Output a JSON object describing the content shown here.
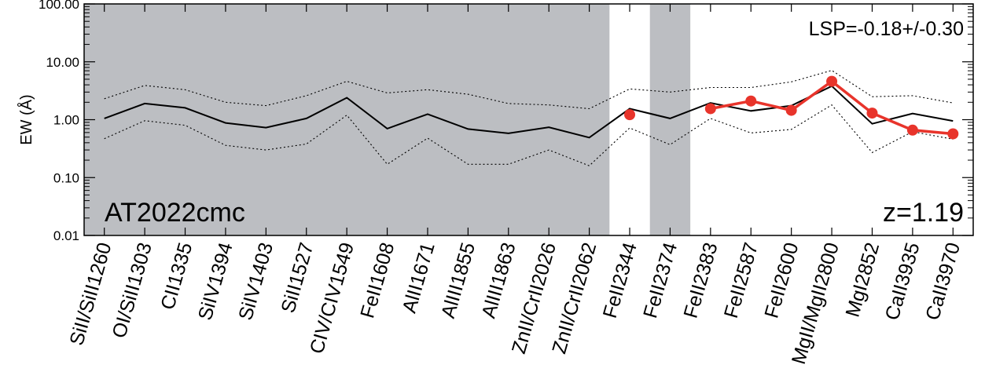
{
  "chart_data": {
    "type": "line",
    "ylabel": "EW (Å)",
    "yscale": "log",
    "ylim": [
      0.01,
      100
    ],
    "yticks": [
      {
        "value": 0.01,
        "label": "0.01"
      },
      {
        "value": 0.1,
        "label": "0.10"
      },
      {
        "value": 1,
        "label": "1.00"
      },
      {
        "value": 10,
        "label": "10.00"
      },
      {
        "value": 100,
        "label": "100.00"
      }
    ],
    "categories": [
      "SiII/SiII1260",
      "OI/SiII1303",
      "CII1335",
      "SiIV1394",
      "SiIV1403",
      "SiII1527",
      "CIV/CIV1549",
      "FeII1608",
      "AlII1671",
      "AlIII1855",
      "AlIII1863",
      "ZnII/CrII2026",
      "ZnII/CrII2062",
      "FeII2344",
      "FeII2374",
      "FeII2383",
      "FeII2587",
      "FeII2600",
      "MgII/MgII2800",
      "MgI2852",
      "CaII3935",
      "CaII3970"
    ],
    "shaded_regions": [
      {
        "from": "SiII/SiII1260",
        "to": "ZnII/CrII2062"
      },
      {
        "from": "FeII2374",
        "to": "FeII2374"
      }
    ],
    "shade_color": "#bcbec2",
    "series": [
      {
        "style": "solid",
        "color": "#000000",
        "values": [
          1.05,
          1.9,
          1.6,
          0.88,
          0.73,
          1.05,
          2.4,
          0.7,
          1.25,
          0.69,
          0.58,
          0.74,
          0.49,
          1.55,
          1.05,
          1.95,
          1.42,
          1.75,
          3.8,
          0.85,
          1.28,
          0.95
        ]
      },
      {
        "style": "dotted",
        "color": "#000000",
        "values": [
          2.3,
          3.9,
          3.3,
          2.0,
          1.75,
          2.6,
          4.6,
          2.9,
          3.3,
          2.75,
          1.9,
          1.8,
          1.55,
          3.4,
          3.0,
          3.6,
          3.6,
          4.5,
          7.1,
          2.5,
          2.6,
          1.95
        ]
      },
      {
        "style": "dotted",
        "color": "#000000",
        "values": [
          0.47,
          0.96,
          0.8,
          0.36,
          0.3,
          0.38,
          1.2,
          0.17,
          0.48,
          0.17,
          0.17,
          0.3,
          0.16,
          0.72,
          0.37,
          1.05,
          0.59,
          0.68,
          1.8,
          0.27,
          0.62,
          0.46
        ]
      },
      {
        "style": "markers-line",
        "color": "#e8342b",
        "points": [
          {
            "x": "FeII2344",
            "y": 1.22
          },
          {
            "x": "FeII2383",
            "y": 1.55
          },
          {
            "x": "FeII2587",
            "y": 2.1
          },
          {
            "x": "FeII2600",
            "y": 1.45
          },
          {
            "x": "MgII/MgII2800",
            "y": 4.6
          },
          {
            "x": "MgI2852",
            "y": 1.3
          },
          {
            "x": "CaII3935",
            "y": 0.66
          },
          {
            "x": "CaII3970",
            "y": 0.57
          }
        ],
        "line_segments": [
          [
            "FeII2383",
            "CaII3970"
          ]
        ]
      }
    ],
    "annotations": {
      "object_name": "AT2022cmc",
      "redshift": "z=1.19",
      "lsp": "LSP=-0.18+/-0.30"
    }
  }
}
